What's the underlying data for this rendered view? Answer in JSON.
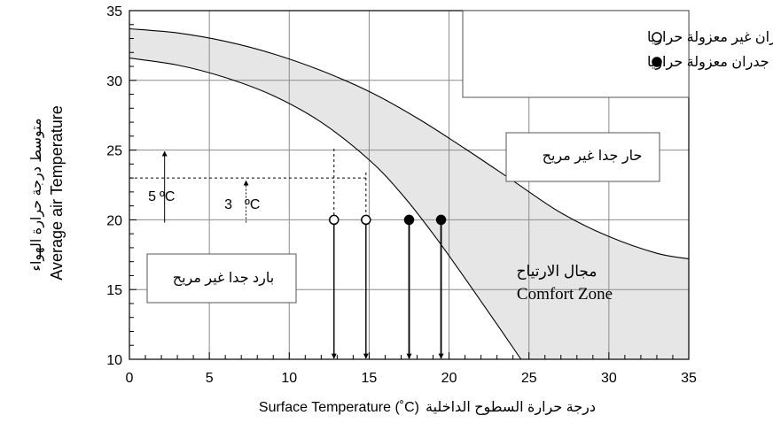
{
  "chart_data": {
    "type": "line",
    "title": "",
    "xlabel_en": "Surface Temperature (˚C)",
    "xlabel_ar": "درجة حرارة السطوح الداخلية",
    "ylabel_en": "Average air Temperature",
    "ylabel_ar": "متوسط درجة حرارة الهواء",
    "xlim": [
      0,
      35
    ],
    "ylim": [
      10,
      35
    ],
    "xticks": [
      0,
      5,
      10,
      15,
      20,
      25,
      30,
      35
    ],
    "yticks": [
      10,
      15,
      20,
      25,
      30,
      35
    ],
    "grid": true,
    "comfort_zone": {
      "label_ar": "مجال الارتياح",
      "label_en": "Comfort Zone",
      "fill_color": "#e6e6e6",
      "upper_boundary": [
        [
          0,
          33.7
        ],
        [
          3,
          33.4
        ],
        [
          6,
          32.8
        ],
        [
          9,
          31.9
        ],
        [
          12,
          30.7
        ],
        [
          15,
          29.2
        ],
        [
          18,
          27.3
        ],
        [
          21,
          25.1
        ],
        [
          24,
          22.8
        ],
        [
          27,
          20.5
        ],
        [
          30,
          18.8
        ],
        [
          33,
          17.6
        ],
        [
          35,
          17.2
        ]
      ],
      "lower_boundary": [
        [
          0,
          31.6
        ],
        [
          3,
          31.1
        ],
        [
          6,
          30.2
        ],
        [
          9,
          28.9
        ],
        [
          12,
          27.0
        ],
        [
          15,
          24.3
        ],
        [
          17,
          21.9
        ],
        [
          19,
          19.0
        ],
        [
          21,
          15.8
        ],
        [
          23,
          12.5
        ],
        [
          24.5,
          10.0
        ]
      ]
    },
    "series": [
      {
        "name": "جدران غير معزولة حراريا",
        "marker": "open-circle",
        "points": [
          [
            12.8,
            20
          ],
          [
            14.8,
            20
          ]
        ]
      },
      {
        "name": "جدران معزولة حراريا",
        "marker": "filled-circle",
        "points": [
          [
            17.5,
            20
          ],
          [
            19.5,
            20
          ]
        ]
      }
    ],
    "reference_line": {
      "y": 23,
      "x_to": 14.8
    },
    "guide_lines": [
      12,
      14.3
    ],
    "annotations": {
      "hot_zone": "حار جدا غير مريح",
      "cold_zone": "بارد جدا غير مريح",
      "delta_5_value": "5",
      "delta_5_unit": "ºC",
      "delta_3_value": "3",
      "delta_3_unit": "ºC"
    },
    "legend_position": "top-right"
  }
}
